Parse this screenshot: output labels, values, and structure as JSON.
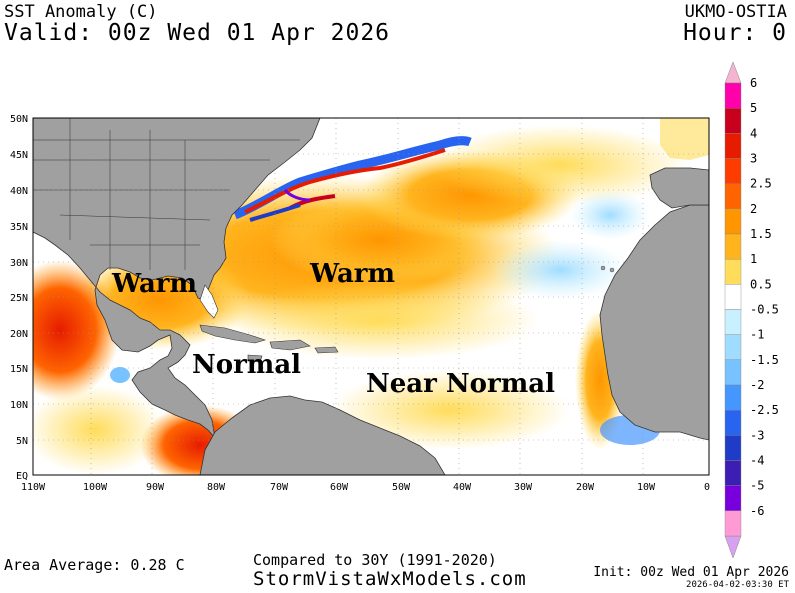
{
  "header": {
    "title": "SST Anomaly (C)",
    "valid": "Valid: 00z Wed 01 Apr 2026",
    "model": "UKMO-OSTIA",
    "hour": "Hour: 0"
  },
  "map": {
    "lat_labels": [
      "50N",
      "45N",
      "40N",
      "35N",
      "30N",
      "25N",
      "20N",
      "15N",
      "10N",
      "5N",
      "EQ"
    ],
    "lon_labels": [
      "110W",
      "100W",
      "90W",
      "80W",
      "70W",
      "60W",
      "50W",
      "40W",
      "30W",
      "20W",
      "10W",
      "0"
    ],
    "annotations": {
      "warm_gulf": "Warm",
      "warm_atlantic": "Warm",
      "normal_caribbean": "Normal",
      "near_normal": "Near Normal"
    }
  },
  "legend": {
    "labels": [
      "6",
      "5",
      "4",
      "3",
      "2.5",
      "2",
      "1.5",
      "1",
      "0.5",
      "-0.5",
      "-1",
      "-1.5",
      "-2",
      "-2.5",
      "-3",
      "-4",
      "-5",
      "-6"
    ],
    "colors": [
      "#ff00aa",
      "#c8001e",
      "#e61c00",
      "#ff3c00",
      "#ff6400",
      "#ff9600",
      "#ffb41e",
      "#ffdc5a",
      "#ffffff",
      "#c8f0ff",
      "#a0dcff",
      "#78c3ff",
      "#4696ff",
      "#2864f0",
      "#1e3cc8",
      "#3c1eb4",
      "#7800dc",
      "#ff9ad5"
    ],
    "top_arrow_color": "#f5b4d2",
    "bottom_arrow_color": "#d8a0f0"
  },
  "footer": {
    "area_average": "Area Average: 0.28 C",
    "compared": "Compared to 30Y (1991-2020)",
    "site": "StormVistaWxModels.com",
    "init": "Init: 00z Wed 01 Apr 2026",
    "timestamp": "2026-04-02-03:30 ET"
  }
}
